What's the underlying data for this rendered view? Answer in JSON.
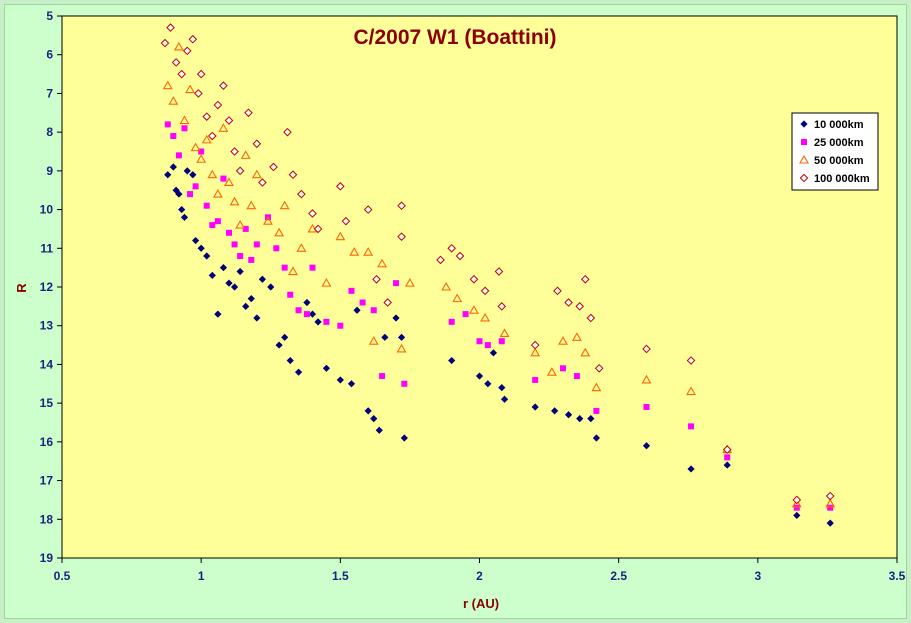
{
  "chart_data": {
    "type": "scatter",
    "title": "C/2007 W1 (Boattini)",
    "xlabel": "r (AU)",
    "ylabel": "R",
    "xlim": [
      0.5,
      3.5
    ],
    "ylim": [
      5,
      19
    ],
    "y_inverted": true,
    "x_ticks": [
      "0.5",
      "1",
      "1.5",
      "2",
      "2.5",
      "3",
      "3.5"
    ],
    "y_ticks": [
      "5",
      "6",
      "7",
      "8",
      "9",
      "10",
      "11",
      "12",
      "13",
      "14",
      "15",
      "16",
      "17",
      "18",
      "19"
    ],
    "grid": false,
    "legend_position": "right",
    "plot_background": "#ffff99",
    "series": [
      {
        "name": "10 000km",
        "marker": "diamond",
        "color": "#00007a",
        "points": [
          [
            0.88,
            9.1
          ],
          [
            0.9,
            8.9
          ],
          [
            0.91,
            9.5
          ],
          [
            0.92,
            9.6
          ],
          [
            0.93,
            10.0
          ],
          [
            0.94,
            10.2
          ],
          [
            0.95,
            9.0
          ],
          [
            0.97,
            9.1
          ],
          [
            0.98,
            10.8
          ],
          [
            1.0,
            11.0
          ],
          [
            1.02,
            11.2
          ],
          [
            1.04,
            11.7
          ],
          [
            1.06,
            12.7
          ],
          [
            1.08,
            11.5
          ],
          [
            1.1,
            11.9
          ],
          [
            1.12,
            12.0
          ],
          [
            1.14,
            11.6
          ],
          [
            1.16,
            12.5
          ],
          [
            1.18,
            12.3
          ],
          [
            1.2,
            12.8
          ],
          [
            1.22,
            11.8
          ],
          [
            1.25,
            12.0
          ],
          [
            1.28,
            13.5
          ],
          [
            1.3,
            13.3
          ],
          [
            1.32,
            13.9
          ],
          [
            1.35,
            14.2
          ],
          [
            1.38,
            12.4
          ],
          [
            1.4,
            12.7
          ],
          [
            1.42,
            12.9
          ],
          [
            1.45,
            14.1
          ],
          [
            1.5,
            14.4
          ],
          [
            1.54,
            14.5
          ],
          [
            1.56,
            12.6
          ],
          [
            1.6,
            15.2
          ],
          [
            1.62,
            15.4
          ],
          [
            1.64,
            15.7
          ],
          [
            1.66,
            13.3
          ],
          [
            1.7,
            12.8
          ],
          [
            1.72,
            13.3
          ],
          [
            1.73,
            15.9
          ],
          [
            1.9,
            13.9
          ],
          [
            2.0,
            14.3
          ],
          [
            2.03,
            14.5
          ],
          [
            2.05,
            13.7
          ],
          [
            2.08,
            14.6
          ],
          [
            2.09,
            14.9
          ],
          [
            2.2,
            15.1
          ],
          [
            2.27,
            15.2
          ],
          [
            2.32,
            15.3
          ],
          [
            2.36,
            15.4
          ],
          [
            2.4,
            15.4
          ],
          [
            2.42,
            15.9
          ],
          [
            2.6,
            16.1
          ],
          [
            2.76,
            16.7
          ],
          [
            2.89,
            16.6
          ],
          [
            3.14,
            17.9
          ],
          [
            3.26,
            18.1
          ]
        ]
      },
      {
        "name": "25 000km",
        "marker": "square",
        "color": "#ff00ff",
        "points": [
          [
            0.88,
            7.8
          ],
          [
            0.9,
            8.1
          ],
          [
            0.92,
            8.6
          ],
          [
            0.94,
            7.9
          ],
          [
            0.96,
            9.6
          ],
          [
            0.98,
            9.4
          ],
          [
            1.0,
            8.5
          ],
          [
            1.02,
            9.9
          ],
          [
            1.04,
            10.4
          ],
          [
            1.06,
            10.3
          ],
          [
            1.08,
            9.2
          ],
          [
            1.1,
            10.6
          ],
          [
            1.12,
            10.9
          ],
          [
            1.14,
            11.2
          ],
          [
            1.16,
            10.5
          ],
          [
            1.18,
            11.3
          ],
          [
            1.2,
            10.9
          ],
          [
            1.24,
            10.2
          ],
          [
            1.27,
            11.0
          ],
          [
            1.3,
            11.5
          ],
          [
            1.32,
            12.2
          ],
          [
            1.35,
            12.6
          ],
          [
            1.38,
            12.7
          ],
          [
            1.4,
            11.5
          ],
          [
            1.45,
            12.9
          ],
          [
            1.5,
            13.0
          ],
          [
            1.54,
            12.1
          ],
          [
            1.58,
            12.4
          ],
          [
            1.62,
            12.6
          ],
          [
            1.65,
            14.3
          ],
          [
            1.7,
            11.9
          ],
          [
            1.73,
            14.5
          ],
          [
            1.9,
            12.9
          ],
          [
            1.95,
            12.7
          ],
          [
            2.0,
            13.4
          ],
          [
            2.03,
            13.5
          ],
          [
            2.08,
            13.4
          ],
          [
            2.2,
            14.4
          ],
          [
            2.3,
            14.1
          ],
          [
            2.35,
            14.3
          ],
          [
            2.42,
            15.2
          ],
          [
            2.6,
            15.1
          ],
          [
            2.76,
            15.6
          ],
          [
            2.89,
            16.4
          ],
          [
            3.14,
            17.7
          ],
          [
            3.26,
            17.7
          ]
        ]
      },
      {
        "name": "50 000km",
        "marker": "triangle",
        "color": "#ff6600",
        "points": [
          [
            0.88,
            6.8
          ],
          [
            0.9,
            7.2
          ],
          [
            0.92,
            5.8
          ],
          [
            0.94,
            7.7
          ],
          [
            0.96,
            6.9
          ],
          [
            0.98,
            8.4
          ],
          [
            1.0,
            8.7
          ],
          [
            1.02,
            8.2
          ],
          [
            1.04,
            9.1
          ],
          [
            1.06,
            9.6
          ],
          [
            1.08,
            7.9
          ],
          [
            1.1,
            9.3
          ],
          [
            1.12,
            9.8
          ],
          [
            1.14,
            10.4
          ],
          [
            1.16,
            8.6
          ],
          [
            1.18,
            9.9
          ],
          [
            1.2,
            9.1
          ],
          [
            1.24,
            10.3
          ],
          [
            1.28,
            10.6
          ],
          [
            1.3,
            9.9
          ],
          [
            1.33,
            11.6
          ],
          [
            1.36,
            11.0
          ],
          [
            1.4,
            10.5
          ],
          [
            1.45,
            11.9
          ],
          [
            1.5,
            10.7
          ],
          [
            1.55,
            11.1
          ],
          [
            1.6,
            11.1
          ],
          [
            1.62,
            13.4
          ],
          [
            1.65,
            11.4
          ],
          [
            1.72,
            13.6
          ],
          [
            1.75,
            11.9
          ],
          [
            1.88,
            12.0
          ],
          [
            1.92,
            12.3
          ],
          [
            1.98,
            12.6
          ],
          [
            2.02,
            12.8
          ],
          [
            2.09,
            13.2
          ],
          [
            2.2,
            13.7
          ],
          [
            2.26,
            14.2
          ],
          [
            2.3,
            13.4
          ],
          [
            2.35,
            13.3
          ],
          [
            2.38,
            13.7
          ],
          [
            2.42,
            14.6
          ],
          [
            2.6,
            14.4
          ],
          [
            2.76,
            14.7
          ],
          [
            2.89,
            16.2
          ],
          [
            3.14,
            17.6
          ],
          [
            3.26,
            17.6
          ]
        ]
      },
      {
        "name": "100 000km",
        "marker": "diamond-open",
        "color": "#c00000",
        "points": [
          [
            0.87,
            5.7
          ],
          [
            0.89,
            5.3
          ],
          [
            0.91,
            6.2
          ],
          [
            0.93,
            6.5
          ],
          [
            0.95,
            5.9
          ],
          [
            0.97,
            5.6
          ],
          [
            0.99,
            7.0
          ],
          [
            1.0,
            6.5
          ],
          [
            1.02,
            7.6
          ],
          [
            1.04,
            8.1
          ],
          [
            1.06,
            7.3
          ],
          [
            1.08,
            6.8
          ],
          [
            1.1,
            7.7
          ],
          [
            1.12,
            8.5
          ],
          [
            1.14,
            9.0
          ],
          [
            1.17,
            7.5
          ],
          [
            1.2,
            8.3
          ],
          [
            1.22,
            9.3
          ],
          [
            1.26,
            8.9
          ],
          [
            1.31,
            8.0
          ],
          [
            1.33,
            9.1
          ],
          [
            1.36,
            9.6
          ],
          [
            1.4,
            10.1
          ],
          [
            1.42,
            10.5
          ],
          [
            1.5,
            9.4
          ],
          [
            1.52,
            10.3
          ],
          [
            1.6,
            10.0
          ],
          [
            1.63,
            11.8
          ],
          [
            1.67,
            12.4
          ],
          [
            1.72,
            10.7
          ],
          [
            1.72,
            9.9
          ],
          [
            1.86,
            11.3
          ],
          [
            1.9,
            11.0
          ],
          [
            1.93,
            11.2
          ],
          [
            1.98,
            11.8
          ],
          [
            2.02,
            12.1
          ],
          [
            2.07,
            11.6
          ],
          [
            2.08,
            12.5
          ],
          [
            2.2,
            13.5
          ],
          [
            2.28,
            12.1
          ],
          [
            2.32,
            12.4
          ],
          [
            2.36,
            12.5
          ],
          [
            2.38,
            11.8
          ],
          [
            2.4,
            12.8
          ],
          [
            2.43,
            14.1
          ],
          [
            2.6,
            13.6
          ],
          [
            2.76,
            13.9
          ],
          [
            2.89,
            16.2
          ],
          [
            3.14,
            17.5
          ],
          [
            3.26,
            17.4
          ]
        ]
      }
    ]
  }
}
